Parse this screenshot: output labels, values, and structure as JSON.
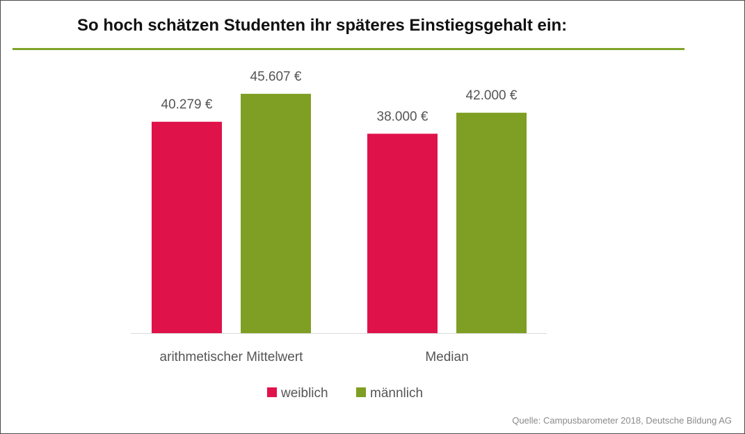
{
  "title": "So hoch schätzen Studenten ihr späteres Einstiegsgehalt ein:",
  "source": "Quelle: Campusbarometer 2018, Deutsche Bildung AG",
  "colors": {
    "weiblich": "#e0124a",
    "maennlich": "#7f9f24",
    "rule": "#7fa32a"
  },
  "chart_data": {
    "type": "bar",
    "title": "So hoch schätzen Studenten ihr späteres Einstiegsgehalt ein:",
    "categories": [
      "arithmetischer Mittelwert",
      "Median"
    ],
    "series": [
      {
        "name": "weiblich",
        "values": [
          40279,
          38000
        ],
        "labels": [
          "40.279 €",
          "38.000 €"
        ],
        "color": "#e0124a"
      },
      {
        "name": "männlich",
        "values": [
          45607,
          42000
        ],
        "labels": [
          "45.607 €",
          "42.000 €"
        ],
        "color": "#7f9f24"
      }
    ],
    "legend": "bottom-center",
    "grid": false
  }
}
